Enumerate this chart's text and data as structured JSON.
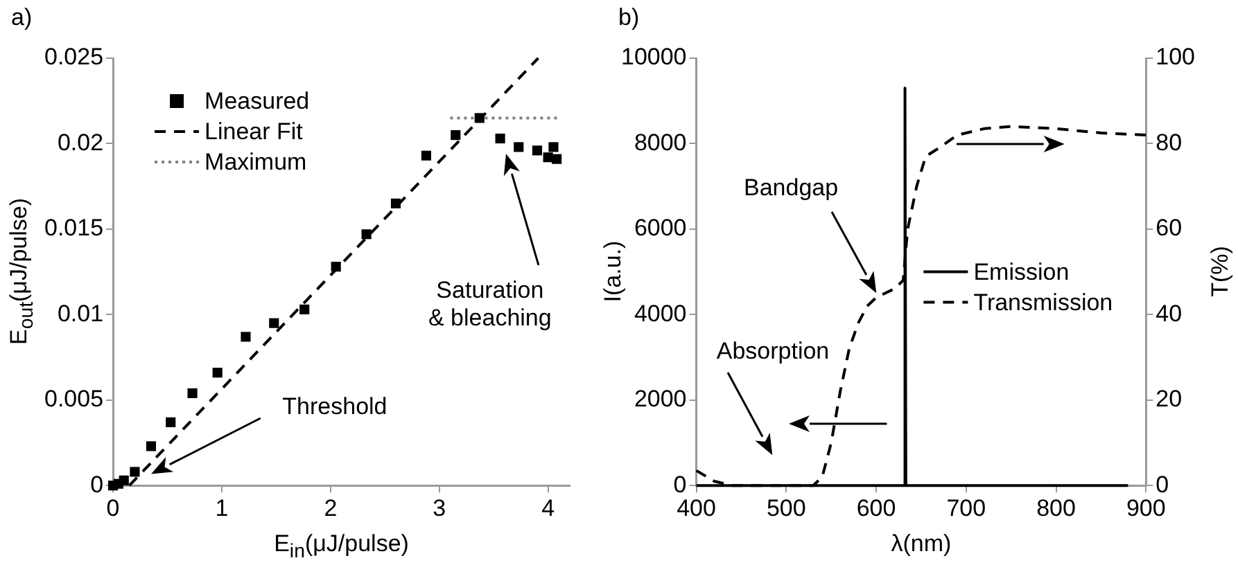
{
  "chart_data": [
    {
      "type": "scatter",
      "title": "a)",
      "xlabel": "E$_{in}$(μJ/pulse)",
      "ylabel": "E$_{out}$(μJ/pulse)",
      "xlim": [
        0,
        4.2
      ],
      "ylim": [
        0,
        0.025
      ],
      "xticks": [
        0,
        1,
        2,
        3,
        4
      ],
      "yticks": [
        0,
        0.005,
        0.01,
        0.015,
        0.02,
        0.025
      ],
      "grid": false,
      "legend": "top left",
      "series": [
        {
          "name": "Measured",
          "marker": "square",
          "color": "#000000",
          "x": [
            0,
            0.05,
            0.1,
            0.2,
            0.35,
            0.53,
            0.73,
            0.96,
            1.22,
            1.48,
            1.76,
            2.05,
            2.33,
            2.6,
            2.88,
            3.15,
            3.37,
            3.56,
            3.73,
            3.9,
            4.0,
            4.05,
            4.08
          ],
          "values": [
            0,
            0.0001,
            0.0003,
            0.0008,
            0.0023,
            0.0037,
            0.0054,
            0.0066,
            0.0087,
            0.0095,
            0.0103,
            0.0128,
            0.0147,
            0.0165,
            0.0193,
            0.0205,
            0.0215,
            0.0203,
            0.0198,
            0.0196,
            0.0192,
            0.0198,
            0.0191
          ]
        },
        {
          "name": "Linear Fit",
          "type": "line",
          "marker": "none",
          "line_style": "dashed",
          "color": "#000000",
          "x": [
            0.15,
            3.91
          ],
          "values": [
            0,
            0.025
          ]
        },
        {
          "name": "Maximum",
          "type": "line",
          "marker": "none",
          "line_style": "dotted",
          "color": "#808080",
          "x": [
            3.1,
            4.1
          ],
          "values": [
            0.0215,
            0.0215
          ]
        }
      ],
      "annotations": [
        "Threshold",
        "Saturation & bleaching"
      ]
    },
    {
      "type": "line",
      "title": "b)",
      "xlabel": "λ(nm)",
      "ylabel": "I(a.u.)",
      "y2label": "T(%)",
      "xlim": [
        400,
        900
      ],
      "ylim": [
        0,
        10000
      ],
      "y2lim": [
        0,
        100
      ],
      "xticks": [
        400,
        500,
        600,
        700,
        800,
        900
      ],
      "yticks": [
        0,
        2000,
        4000,
        6000,
        8000,
        10000
      ],
      "y2ticks": [
        0,
        20,
        40,
        60,
        80,
        100
      ],
      "grid": false,
      "legend": "right",
      "series": [
        {
          "name": "Emission",
          "marker": "none",
          "line_style": "solid",
          "axis": "y",
          "color": "#000000",
          "x": [
            400,
            629,
            631,
            632,
            633,
            635,
            880
          ],
          "values": [
            0,
            0,
            0,
            9300,
            0,
            0,
            0
          ]
        },
        {
          "name": "Transmission",
          "marker": "none",
          "line_style": "dashed",
          "axis": "y2",
          "color": "#000000",
          "x": [
            400,
            420,
            440,
            530,
            540,
            550,
            560,
            570,
            580,
            590,
            600,
            620,
            630,
            635,
            645,
            655,
            670,
            690,
            720,
            750,
            800,
            850,
            900
          ],
          "values": [
            3.5,
            1,
            0,
            0,
            2,
            10,
            22,
            32,
            38,
            42,
            44,
            46,
            48,
            60,
            70,
            77,
            79,
            82,
            83.5,
            84,
            83.5,
            82.5,
            82
          ]
        }
      ],
      "annotations": [
        "Bandgap",
        "Absorption"
      ]
    }
  ]
}
